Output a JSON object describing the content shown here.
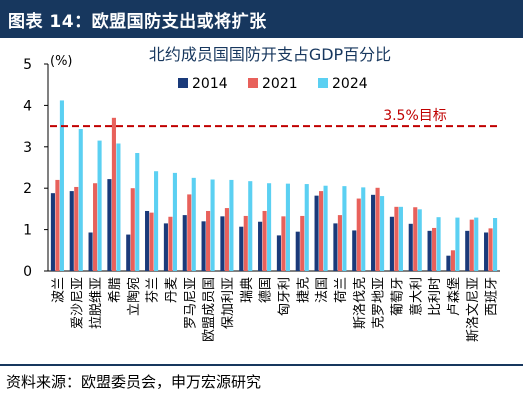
{
  "header": {
    "title": "图表 14：欧盟国防支出或将扩张"
  },
  "source": "资料来源：欧盟委员会，申万宏源研究",
  "colors": {
    "header_bg": "#17375e",
    "s2014": "#1a3a7a",
    "s2021": "#e8615b",
    "s2024": "#5bd0f2",
    "target": "#c00000"
  },
  "chart_data": {
    "type": "bar",
    "title": "北约成员国国防开支占GDP百分比",
    "ylabel": "(%)",
    "ylim": [
      0,
      5
    ],
    "yticks": [
      0,
      1,
      2,
      3,
      4,
      5
    ],
    "categories": [
      "波兰",
      "爱沙尼亚",
      "拉脱维亚",
      "希腊",
      "立陶宛",
      "芬兰",
      "丹麦",
      "罗马尼亚",
      "欧盟成员国",
      "保加利亚",
      "瑞典",
      "德国",
      "匈牙利",
      "捷克",
      "法国",
      "荷兰",
      "斯洛伐克",
      "克罗地亚",
      "葡萄牙",
      "意大利",
      "比利时",
      "卢森堡",
      "斯洛文尼亚",
      "西班牙"
    ],
    "series": [
      {
        "name": "2014",
        "values": [
          1.88,
          1.93,
          0.93,
          2.22,
          0.88,
          1.45,
          1.15,
          1.35,
          1.2,
          1.32,
          1.07,
          1.19,
          0.86,
          0.95,
          1.82,
          1.15,
          0.98,
          1.84,
          1.31,
          1.14,
          0.97,
          0.37,
          0.97,
          0.93
        ]
      },
      {
        "name": "2021",
        "values": [
          2.2,
          2.03,
          2.12,
          3.7,
          2.0,
          1.41,
          1.31,
          1.85,
          1.45,
          1.52,
          1.33,
          1.45,
          1.32,
          1.33,
          1.93,
          1.35,
          1.75,
          2.01,
          1.55,
          1.54,
          1.04,
          0.5,
          1.24,
          1.03
        ]
      },
      {
        "name": "2024",
        "values": [
          4.12,
          3.43,
          3.15,
          3.08,
          2.85,
          2.41,
          2.37,
          2.25,
          2.21,
          2.2,
          2.17,
          2.12,
          2.11,
          2.1,
          2.06,
          2.05,
          2.02,
          1.81,
          1.55,
          1.49,
          1.3,
          1.29,
          1.29,
          1.28
        ]
      }
    ],
    "reference_line": {
      "value": 3.5,
      "label": "3.5%目标"
    },
    "grid": false,
    "legend_position": "top-center"
  }
}
